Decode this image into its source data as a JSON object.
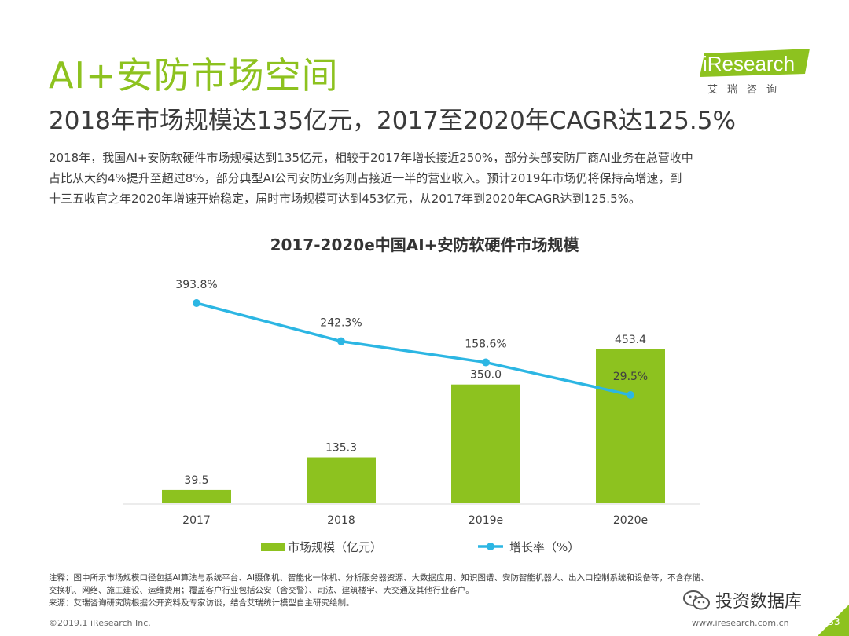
{
  "header": {
    "title": "AI+安防市场空间",
    "subtitle": "2018年市场规模达135亿元，2017至2020年CAGR达125.5%"
  },
  "logo": {
    "brand": "iResearch",
    "brand_cn": "艾瑞咨询"
  },
  "intro": {
    "lines": [
      "2018年，我国AI+安防软硬件市场规模达到135亿元，相较于2017年增长接近250%，部分头部安防厂商AI业务在总营收中",
      "占比从大约4%提升至超过8%，部分典型AI公司安防业务则占接近一半的营业收入。预计2019年市场仍将保持高增速，到",
      "十三五收官之年2020年增速开始稳定，届时市场规模可达到453亿元，从2017年到2020年CAGR达到125.5%。"
    ]
  },
  "chart_data": {
    "type": "bar",
    "title": "2017-2020e中国AI+安防软硬件市场规模",
    "categories": [
      "2017",
      "2018",
      "2019e",
      "2020e"
    ],
    "series": [
      {
        "name": "市场规模（亿元）",
        "type": "bar",
        "values": [
          39.5,
          135.3,
          350.0,
          453.4
        ],
        "labels": [
          "39.5",
          "135.3",
          "350.0",
          "453.4"
        ],
        "color": "#8dc21f"
      },
      {
        "name": "增长率（%）",
        "type": "line",
        "values": [
          393.8,
          242.3,
          158.6,
          29.5
        ],
        "labels": [
          "393.8%",
          "242.3%",
          "158.6%",
          "29.5%"
        ],
        "color": "#2cb6e3"
      }
    ],
    "legend_position": "bottom",
    "grid": false
  },
  "notes": {
    "lines": [
      "注释：图中所示市场规模口径包括AI算法与系统平台、AI摄像机、智能化一体机、分析服务器资源、大数据应用、知识图谱、安防智能机器人、出入口控制系统和设备等，不含存储、",
      "交换机、网络、施工建设、运维费用；覆盖客户行业包括公安（含交警）、司法、建筑楼宇、大交通及其他行业客户。",
      "来源：艾瑞咨询研究院根据公开资料及专家访谈，结合艾瑞统计模型自主研究绘制。"
    ]
  },
  "footer": {
    "copyright": "©2019.1 iResearch Inc.",
    "website": "www.iresearch.com.cn",
    "page_number": "33"
  },
  "watermark": {
    "text": "投资数据库"
  }
}
